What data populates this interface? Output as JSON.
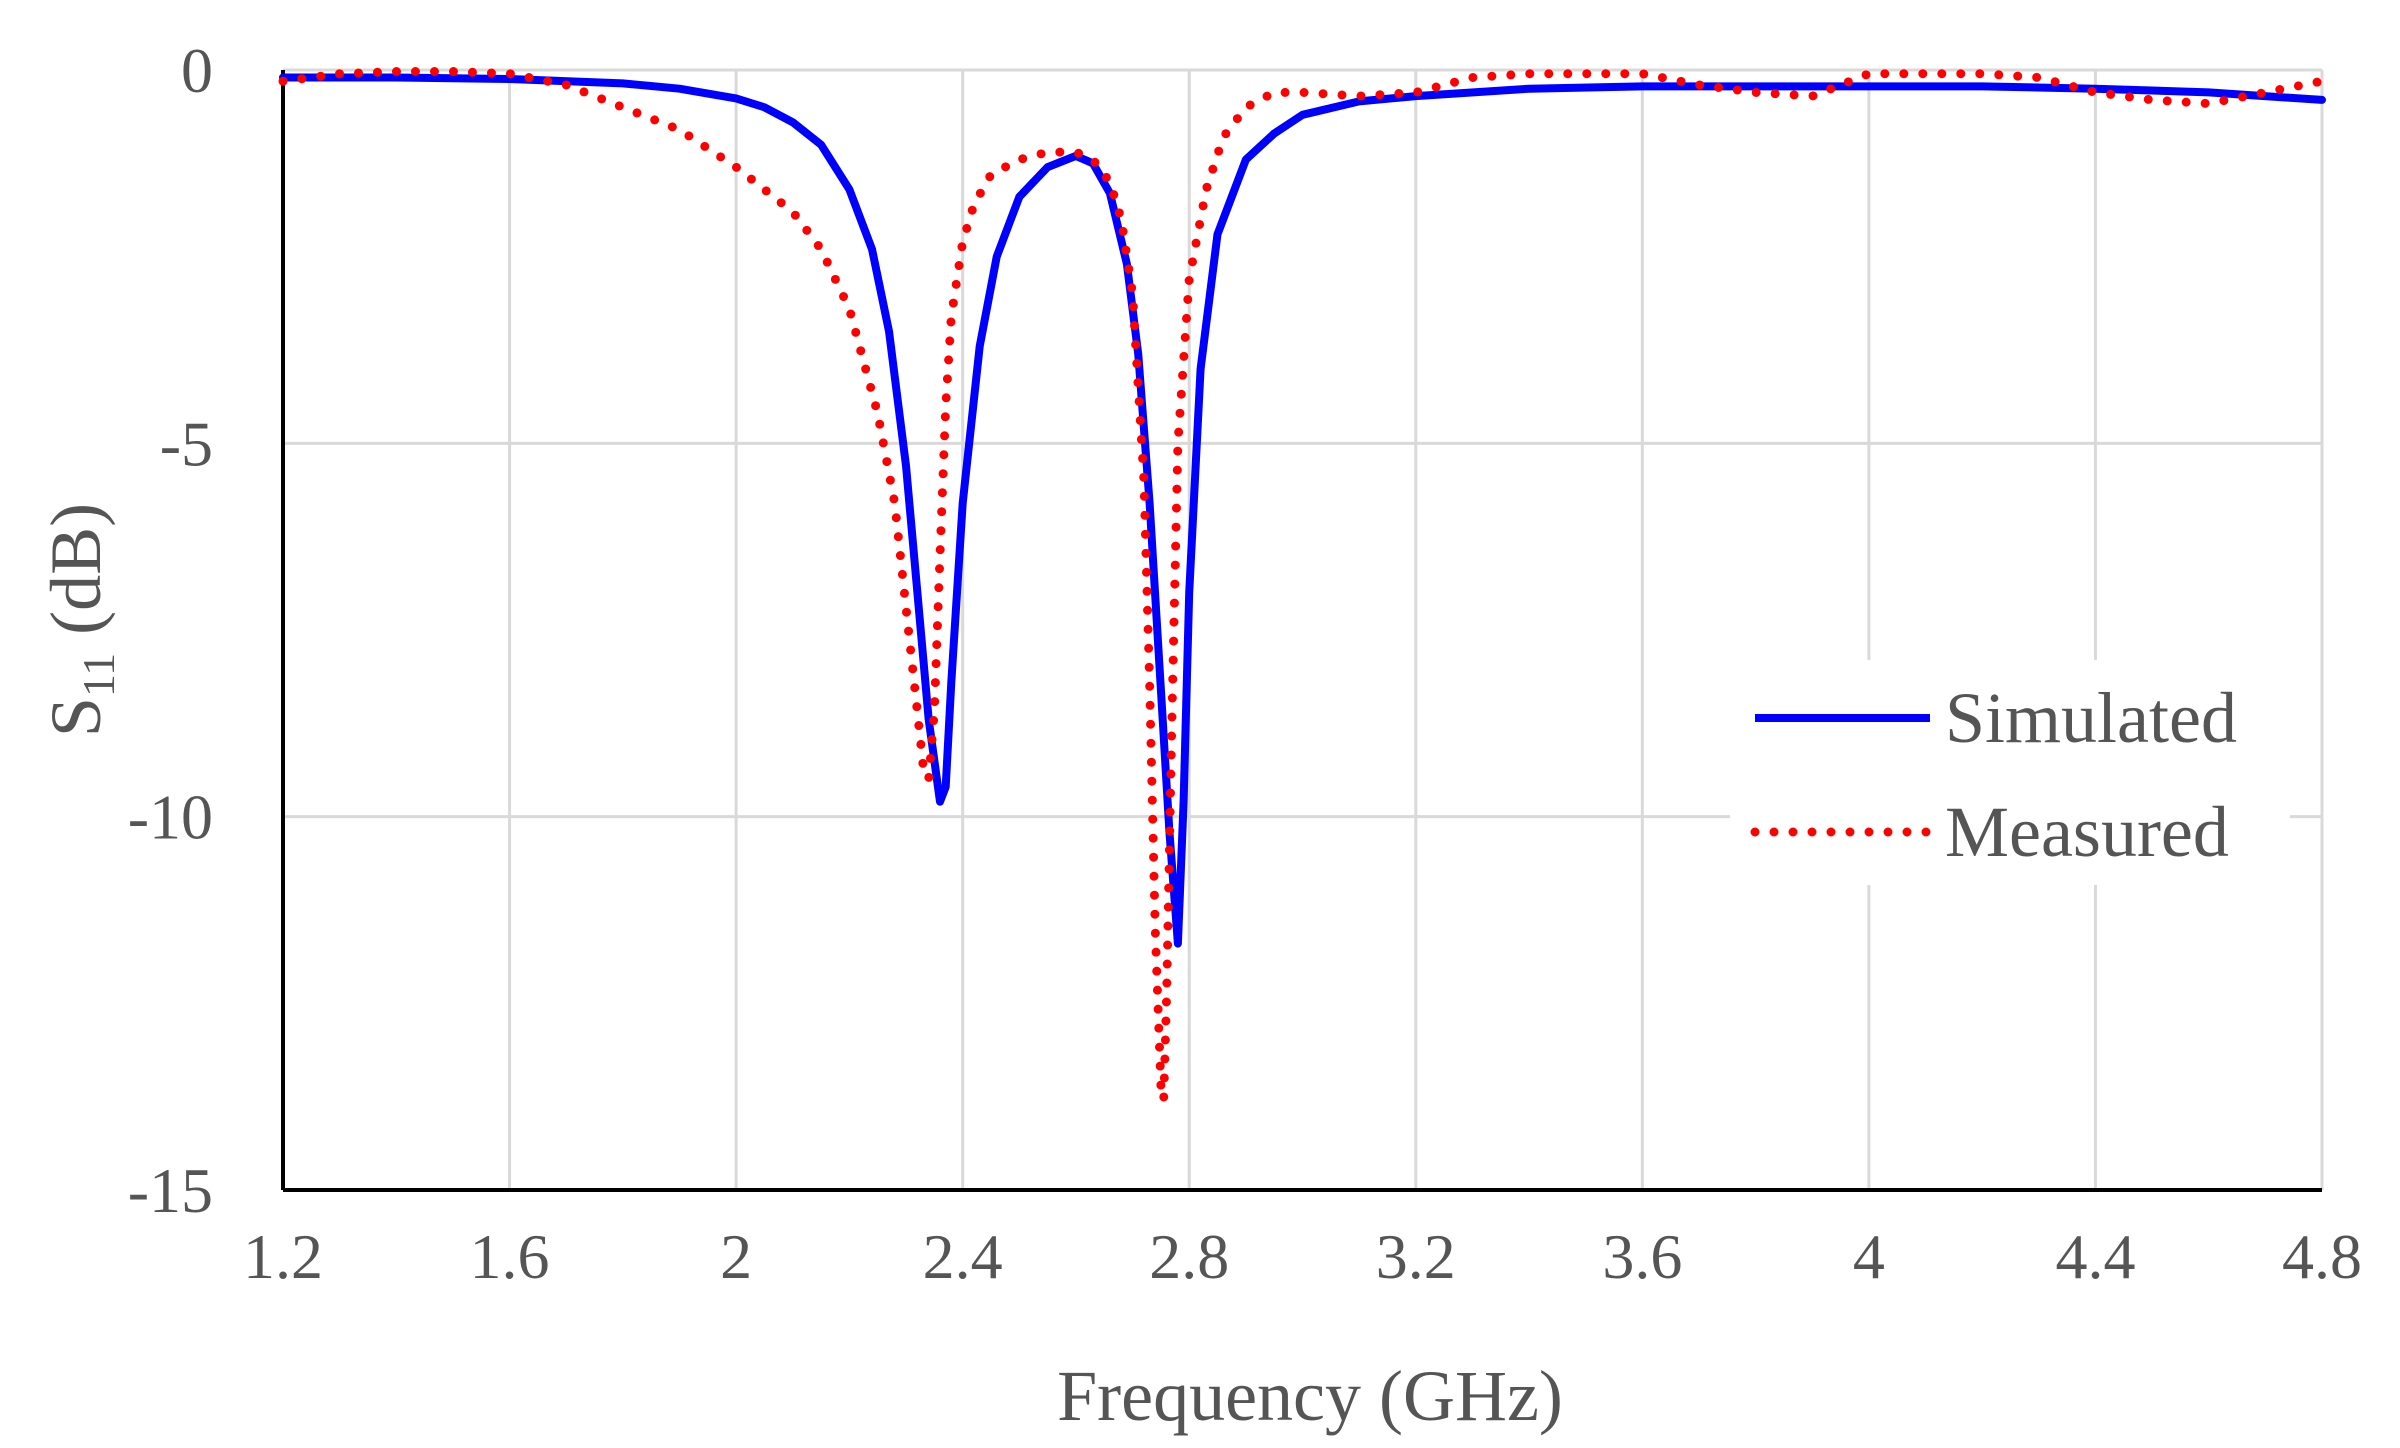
{
  "chart_data": {
    "type": "line",
    "title": "",
    "xlabel": "Frequency (GHz)",
    "ylabel_main": "S",
    "ylabel_sub": "11",
    "ylabel_rest": " (dB)",
    "xlim": [
      1.2,
      4.8
    ],
    "ylim": [
      -15,
      0
    ],
    "xticks": [
      1.2,
      1.6,
      2.0,
      2.4,
      2.8,
      3.2,
      3.6,
      4.0,
      4.4,
      4.8
    ],
    "xtick_labels": [
      "1.2",
      "1.6",
      "2",
      "2.4",
      "2.8",
      "3.2",
      "3.6",
      "4",
      "4.4",
      "4.8"
    ],
    "yticks": [
      0,
      -5,
      -10,
      -15
    ],
    "ytick_labels": [
      "0",
      "-5",
      "-10",
      "-15"
    ],
    "grid": true,
    "legend_position": "right",
    "series": [
      {
        "name": "Simulated",
        "color": "#0000ff",
        "style": "solid",
        "x": [
          1.2,
          1.4,
          1.6,
          1.8,
          1.9,
          2.0,
          2.05,
          2.1,
          2.15,
          2.2,
          2.24,
          2.27,
          2.3,
          2.32,
          2.34,
          2.36,
          2.37,
          2.38,
          2.4,
          2.43,
          2.46,
          2.5,
          2.55,
          2.6,
          2.63,
          2.66,
          2.69,
          2.71,
          2.73,
          2.75,
          2.765,
          2.78,
          2.79,
          2.8,
          2.82,
          2.85,
          2.9,
          2.95,
          3.0,
          3.1,
          3.2,
          3.4,
          3.6,
          3.8,
          4.0,
          4.2,
          4.4,
          4.6,
          4.8
        ],
        "values": [
          -0.1,
          -0.1,
          -0.12,
          -0.18,
          -0.25,
          -0.38,
          -0.5,
          -0.7,
          -1.0,
          -1.6,
          -2.4,
          -3.5,
          -5.3,
          -7.0,
          -8.7,
          -9.8,
          -9.6,
          -8.2,
          -5.8,
          -3.7,
          -2.5,
          -1.7,
          -1.3,
          -1.15,
          -1.25,
          -1.65,
          -2.6,
          -3.8,
          -5.8,
          -8.3,
          -10.2,
          -11.7,
          -9.8,
          -7.0,
          -4.0,
          -2.2,
          -1.2,
          -0.85,
          -0.6,
          -0.42,
          -0.35,
          -0.25,
          -0.22,
          -0.22,
          -0.22,
          -0.22,
          -0.25,
          -0.3,
          -0.4
        ]
      },
      {
        "name": "Measured",
        "color": "#ff0000",
        "style": "dotted",
        "x": [
          1.2,
          1.3,
          1.4,
          1.5,
          1.6,
          1.7,
          1.8,
          1.9,
          2.0,
          2.1,
          2.15,
          2.2,
          2.25,
          2.28,
          2.3,
          2.32,
          2.33,
          2.34,
          2.35,
          2.36,
          2.37,
          2.38,
          2.4,
          2.42,
          2.45,
          2.5,
          2.55,
          2.6,
          2.63,
          2.66,
          2.68,
          2.7,
          2.72,
          2.73,
          2.74,
          2.75,
          2.755,
          2.76,
          2.77,
          2.78,
          2.8,
          2.83,
          2.86,
          2.9,
          2.95,
          3.0,
          3.1,
          3.2,
          3.3,
          3.4,
          3.5,
          3.6,
          3.7,
          3.8,
          3.9,
          4.0,
          4.1,
          4.2,
          4.3,
          4.4,
          4.5,
          4.6,
          4.7,
          4.8
        ],
        "values": [
          -0.15,
          -0.05,
          -0.02,
          -0.02,
          -0.05,
          -0.2,
          -0.5,
          -0.8,
          -1.3,
          -1.9,
          -2.4,
          -3.2,
          -4.6,
          -5.8,
          -7.2,
          -8.6,
          -9.3,
          -9.5,
          -8.6,
          -6.5,
          -4.5,
          -3.3,
          -2.3,
          -1.8,
          -1.4,
          -1.2,
          -1.1,
          -1.1,
          -1.2,
          -1.5,
          -2.0,
          -3.0,
          -5.5,
          -8.2,
          -11.5,
          -13.6,
          -13.8,
          -12.4,
          -8.5,
          -5.0,
          -2.8,
          -1.6,
          -0.9,
          -0.5,
          -0.3,
          -0.3,
          -0.35,
          -0.3,
          -0.1,
          -0.05,
          -0.05,
          -0.05,
          -0.2,
          -0.3,
          -0.35,
          -0.05,
          -0.05,
          -0.05,
          -0.1,
          -0.3,
          -0.4,
          -0.45,
          -0.3,
          -0.15
        ]
      }
    ]
  }
}
